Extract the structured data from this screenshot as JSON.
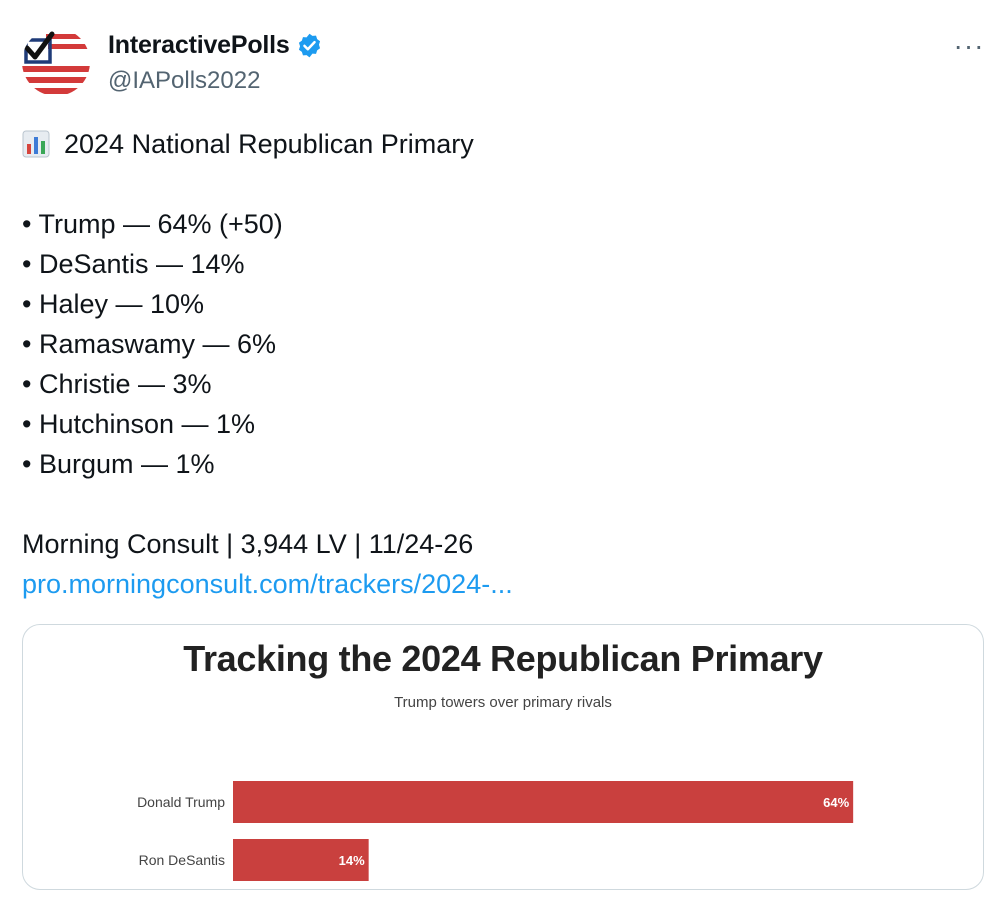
{
  "author": {
    "display_name": "InteractivePolls",
    "handle": "@IAPolls2022",
    "verified": true,
    "more_label": "···"
  },
  "tweet": {
    "emoji": "📊",
    "headline": "2024 National Republican Primary",
    "lines": [
      "• Trump — 64% (+50)",
      "• DeSantis — 14%",
      "• Haley — 10%",
      "• Ramaswamy — 6%",
      "• Christie — 3%",
      "• Hutchinson — 1%",
      "• Burgum — 1%"
    ],
    "source": "Morning Consult | 3,944 LV | 11/24-26",
    "link_text": "pro.morningconsult.com/trackers/2024-..."
  },
  "card": {
    "chart_data": {
      "type": "bar",
      "orientation": "horizontal",
      "title": "Tracking the 2024 Republican Primary",
      "subtitle": "Trump towers over primary rivals",
      "categories": [
        "Donald Trump",
        "Ron DeSantis"
      ],
      "values": [
        64,
        14
      ],
      "value_labels": [
        "64%",
        "14%"
      ],
      "xlim": [
        0,
        70
      ],
      "grid": false,
      "color": "#c9403e"
    }
  }
}
